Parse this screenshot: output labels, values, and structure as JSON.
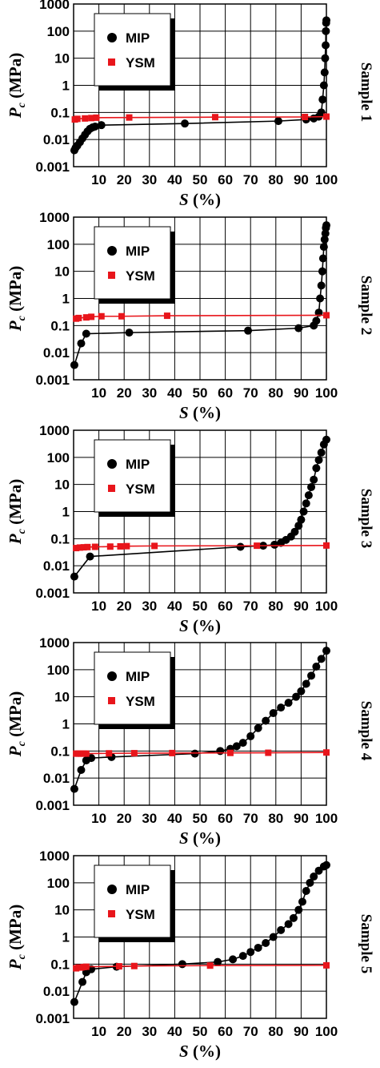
{
  "colors": {
    "mip": "#000000",
    "ysm": "#e8151b",
    "grid": "#000000"
  },
  "chart_data": [
    {
      "type": "scatter",
      "sample_label": "Sample 1",
      "xlabel_italic": "S",
      "xlabel_rest": " (%)",
      "ylabel_italic": "P",
      "ylabel_sub": "c",
      "ylabel_rest": " (MPa)",
      "xlim": [
        0,
        100
      ],
      "ylim": [
        0.001,
        1000
      ],
      "yscale": "log",
      "xticks": [
        "10",
        "20",
        "30",
        "40",
        "50",
        "60",
        "70",
        "80",
        "90",
        "100"
      ],
      "yticks": [
        "0.001",
        "0.01",
        "0.1",
        "1",
        "10",
        "100",
        "1000"
      ],
      "legend": [
        "MIP",
        "YSM"
      ],
      "legend_position": "top-left",
      "grid": true,
      "series": [
        {
          "name": "MIP",
          "marker": "circle",
          "line": true,
          "x": [
            0.3,
            0.8,
            1.5,
            2.5,
            3.5,
            4.5,
            5.5,
            6.5,
            7.5,
            8.5,
            11,
            44,
            81,
            92,
            95,
            97,
            98,
            98.5,
            99,
            99.3,
            99.5,
            99.7,
            99.8,
            99.9,
            100
          ],
          "y": [
            0.004,
            0.005,
            0.006,
            0.008,
            0.011,
            0.015,
            0.02,
            0.025,
            0.028,
            0.03,
            0.034,
            0.039,
            0.048,
            0.055,
            0.06,
            0.07,
            0.1,
            0.3,
            1,
            3,
            10,
            30,
            100,
            200,
            250
          ]
        },
        {
          "name": "YSM",
          "marker": "square",
          "line": true,
          "extend": [
            0,
            100
          ],
          "x": [
            0.5,
            1.5,
            4.5,
            7,
            9,
            22,
            56,
            91.5,
            100
          ],
          "y": [
            0.055,
            0.058,
            0.06,
            0.062,
            0.064,
            0.065,
            0.067,
            0.068,
            0.07
          ]
        }
      ]
    },
    {
      "type": "scatter",
      "sample_label": "Sample 2",
      "xlabel_italic": "S",
      "xlabel_rest": " (%)",
      "ylabel_italic": "P",
      "ylabel_sub": "c",
      "ylabel_rest": " (MPa)",
      "xlim": [
        0,
        100
      ],
      "ylim": [
        0.001,
        1000
      ],
      "yscale": "log",
      "xticks": [
        "10",
        "20",
        "30",
        "40",
        "50",
        "60",
        "70",
        "80",
        "90",
        "100"
      ],
      "yticks": [
        "0.001",
        "0.01",
        "0.1",
        "1",
        "10",
        "100",
        "1000"
      ],
      "legend": [
        "MIP",
        "YSM"
      ],
      "legend_position": "top-left",
      "grid": true,
      "series": [
        {
          "name": "MIP",
          "marker": "circle",
          "line": true,
          "x": [
            0.3,
            3,
            5,
            22,
            69,
            89,
            95,
            96,
            97,
            97.5,
            98,
            98.4,
            98.7,
            99,
            99.3,
            99.6,
            99.8,
            100
          ],
          "y": [
            0.0035,
            0.022,
            0.05,
            0.055,
            0.065,
            0.08,
            0.1,
            0.15,
            0.3,
            1,
            3,
            10,
            30,
            80,
            150,
            250,
            400,
            500
          ]
        },
        {
          "name": "YSM",
          "marker": "square",
          "line": true,
          "extend": [
            0,
            100
          ],
          "x": [
            1,
            2,
            5,
            7,
            11,
            19,
            37,
            100
          ],
          "y": [
            0.18,
            0.19,
            0.2,
            0.21,
            0.22,
            0.22,
            0.23,
            0.24
          ]
        }
      ]
    },
    {
      "type": "scatter",
      "sample_label": "Sample 3",
      "xlabel_italic": "S",
      "xlabel_rest": " (%)",
      "ylabel_italic": "P",
      "ylabel_sub": "c",
      "ylabel_rest": " (MPa)",
      "xlim": [
        0,
        100
      ],
      "ylim": [
        0.001,
        1000
      ],
      "yscale": "log",
      "xticks": [
        "10",
        "20",
        "30",
        "40",
        "50",
        "60",
        "70",
        "80",
        "90",
        "100"
      ],
      "yticks": [
        "0.001",
        "0.01",
        "0.1",
        "1",
        "10",
        "100",
        "1000"
      ],
      "legend": [
        "MIP",
        "YSM"
      ],
      "legend_position": "top-left",
      "grid": true,
      "series": [
        {
          "name": "MIP",
          "marker": "circle",
          "line": true,
          "x": [
            0.3,
            6.5,
            66,
            75,
            79.5,
            82,
            84,
            86,
            87.5,
            89,
            90,
            91,
            92,
            93,
            94,
            95,
            96,
            97,
            98,
            99,
            100
          ],
          "y": [
            0.004,
            0.022,
            0.05,
            0.055,
            0.06,
            0.07,
            0.09,
            0.12,
            0.18,
            0.3,
            0.5,
            1,
            2,
            4,
            8,
            15,
            40,
            80,
            150,
            300,
            450
          ]
        },
        {
          "name": "YSM",
          "marker": "square",
          "line": true,
          "extend": [
            0,
            100
          ],
          "x": [
            1,
            2.5,
            4,
            5.5,
            8.5,
            14.5,
            18.5,
            21,
            32,
            72.5,
            100
          ],
          "y": [
            0.045,
            0.047,
            0.048,
            0.049,
            0.05,
            0.051,
            0.052,
            0.053,
            0.054,
            0.055,
            0.056
          ]
        }
      ]
    },
    {
      "type": "scatter",
      "sample_label": "Sample 4",
      "xlabel_italic": "S",
      "xlabel_rest": " (%)",
      "ylabel_italic": "P",
      "ylabel_sub": "c",
      "ylabel_rest": " (MPa)",
      "xlim": [
        0,
        100
      ],
      "ylim": [
        0.001,
        1000
      ],
      "yscale": "log",
      "xticks": [
        "10",
        "20",
        "30",
        "40",
        "50",
        "60",
        "70",
        "80",
        "90",
        "100"
      ],
      "yticks": [
        "0.001",
        "0.01",
        "0.1",
        "1",
        "10",
        "100",
        "1000"
      ],
      "legend": [
        "MIP",
        "YSM"
      ],
      "legend_position": "top-left",
      "grid": true,
      "series": [
        {
          "name": "MIP",
          "marker": "circle",
          "line": true,
          "x": [
            0.3,
            3,
            5,
            7,
            15,
            48,
            58,
            62,
            64.5,
            67,
            70,
            73,
            76,
            79,
            82,
            85,
            88,
            90,
            92,
            94,
            96,
            98,
            100
          ],
          "y": [
            0.004,
            0.02,
            0.045,
            0.055,
            0.06,
            0.08,
            0.1,
            0.12,
            0.15,
            0.2,
            0.35,
            0.7,
            1.3,
            2.5,
            4,
            6,
            10,
            16,
            30,
            60,
            130,
            250,
            500
          ]
        },
        {
          "name": "YSM",
          "marker": "square",
          "line": true,
          "extend": [
            0,
            100
          ],
          "x": [
            1,
            2,
            3,
            4,
            5,
            14,
            24,
            39,
            62,
            77,
            100
          ],
          "y": [
            0.08,
            0.08,
            0.08,
            0.08,
            0.08,
            0.082,
            0.083,
            0.084,
            0.085,
            0.086,
            0.088
          ]
        }
      ]
    },
    {
      "type": "scatter",
      "sample_label": "Sample 5",
      "xlabel_italic": "S",
      "xlabel_rest": " (%)",
      "ylabel_italic": "P",
      "ylabel_sub": "c",
      "ylabel_rest": " (MPa)",
      "xlim": [
        0,
        100
      ],
      "ylim": [
        0.001,
        1000
      ],
      "yscale": "log",
      "xticks": [
        "10",
        "20",
        "30",
        "40",
        "50",
        "60",
        "70",
        "80",
        "90",
        "100"
      ],
      "yticks": [
        "0.001",
        "0.01",
        "0.1",
        "1",
        "10",
        "100",
        "1000"
      ],
      "legend": [
        "MIP",
        "YSM"
      ],
      "legend_position": "top-left",
      "grid": true,
      "series": [
        {
          "name": "MIP",
          "marker": "circle",
          "line": true,
          "x": [
            0.3,
            3.5,
            5,
            7,
            17,
            43,
            57,
            63,
            67,
            70,
            73,
            76,
            79,
            82,
            85,
            87,
            89,
            90.5,
            92,
            93.5,
            95,
            97,
            99,
            100
          ],
          "y": [
            0.004,
            0.022,
            0.05,
            0.065,
            0.08,
            0.1,
            0.12,
            0.15,
            0.2,
            0.28,
            0.4,
            0.6,
            1,
            1.8,
            3,
            5,
            10,
            20,
            50,
            100,
            170,
            280,
            400,
            450
          ]
        },
        {
          "name": "YSM",
          "marker": "square",
          "line": true,
          "extend": [
            0,
            100
          ],
          "x": [
            1,
            2,
            3,
            4,
            5,
            18,
            24,
            54,
            100
          ],
          "y": [
            0.07,
            0.075,
            0.075,
            0.078,
            0.08,
            0.083,
            0.085,
            0.088,
            0.09
          ]
        }
      ]
    }
  ]
}
